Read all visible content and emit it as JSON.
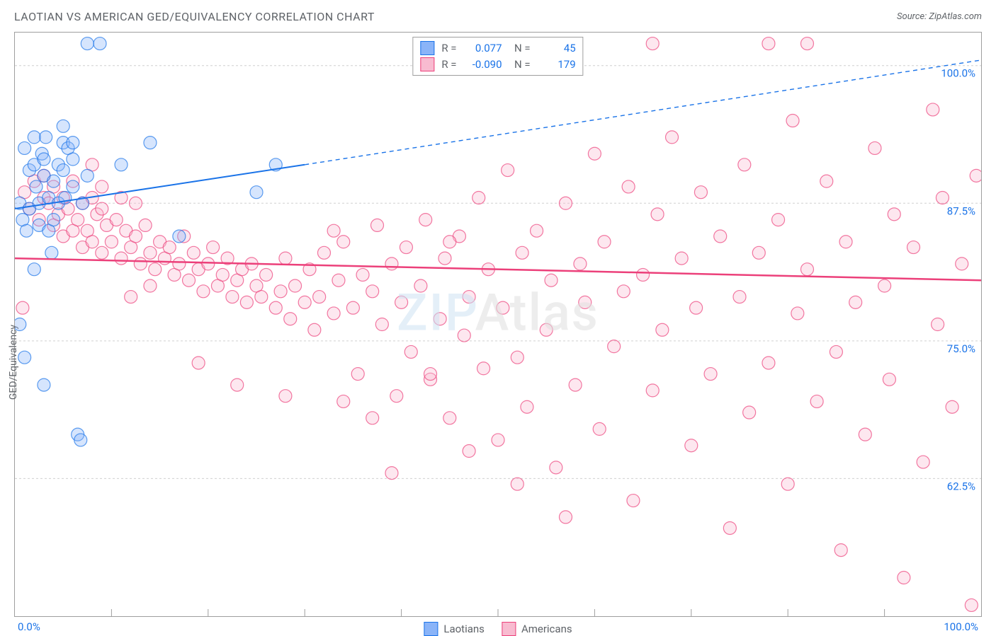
{
  "header": {
    "title": "LAOTIAN VS AMERICAN GED/EQUIVALENCY CORRELATION CHART",
    "source": "Source: ZipAtlas.com"
  },
  "watermark": {
    "z": "ZIP",
    "rest": "Atlas"
  },
  "chart": {
    "type": "scatter",
    "ylabel": "GED/Equivalency",
    "xlim": [
      0,
      100
    ],
    "ylim": [
      50,
      103
    ],
    "x_axis_left_label": "0.0%",
    "x_axis_right_label": "100.0%",
    "y_ticks": [
      {
        "v": 100.0,
        "label": "100.0%"
      },
      {
        "v": 87.5,
        "label": "87.5%"
      },
      {
        "v": 75.0,
        "label": "75.0%"
      },
      {
        "v": 62.5,
        "label": "62.5%"
      }
    ],
    "x_tick_marks": [
      10,
      20,
      30,
      40,
      50,
      60,
      70,
      80,
      90
    ],
    "grid_color": "#d0d0d0",
    "border_color": "#9e9e9e",
    "background_color": "#ffffff",
    "marker_radius": 9,
    "marker_opacity": 0.35,
    "series": [
      {
        "name": "Laotians",
        "color_fill": "#8ab4f8",
        "color_stroke": "#1a73e8",
        "R": "0.077",
        "N": "45",
        "trend": {
          "x1": 0,
          "y1": 87.0,
          "x2_solid": 30,
          "y2_solid": 91.0,
          "x2": 100,
          "y2": 100.5,
          "color": "#1a73e8",
          "width": 2
        },
        "points": [
          [
            0.5,
            87.5
          ],
          [
            0.8,
            86.0
          ],
          [
            1.0,
            92.5
          ],
          [
            1.2,
            85.0
          ],
          [
            1.5,
            90.5
          ],
          [
            1.5,
            87.0
          ],
          [
            2.0,
            93.5
          ],
          [
            2.0,
            91.0
          ],
          [
            2.2,
            89.0
          ],
          [
            2.5,
            87.5
          ],
          [
            2.5,
            85.5
          ],
          [
            2.8,
            92.0
          ],
          [
            3.0,
            90.0
          ],
          [
            3.0,
            91.5
          ],
          [
            3.2,
            93.5
          ],
          [
            3.5,
            88.0
          ],
          [
            3.5,
            85.0
          ],
          [
            3.8,
            83.0
          ],
          [
            4.0,
            86.0
          ],
          [
            4.0,
            89.5
          ],
          [
            4.5,
            91.0
          ],
          [
            4.5,
            87.5
          ],
          [
            5.0,
            93.0
          ],
          [
            5.0,
            90.5
          ],
          [
            5.2,
            88.0
          ],
          [
            5.5,
            92.5
          ],
          [
            6.0,
            91.5
          ],
          [
            6.0,
            89.0
          ],
          [
            6.5,
            66.5
          ],
          [
            6.8,
            66.0
          ],
          [
            7.0,
            87.5
          ],
          [
            7.5,
            90.0
          ],
          [
            7.5,
            102.0
          ],
          [
            8.8,
            102.0
          ],
          [
            0.5,
            76.5
          ],
          [
            1.0,
            73.5
          ],
          [
            2.0,
            81.5
          ],
          [
            3.0,
            71.0
          ],
          [
            5.0,
            94.5
          ],
          [
            6.0,
            93.0
          ],
          [
            11.0,
            91.0
          ],
          [
            14.0,
            93.0
          ],
          [
            17.0,
            84.5
          ],
          [
            25.0,
            88.5
          ],
          [
            27.0,
            91.0
          ]
        ]
      },
      {
        "name": "Americans",
        "color_fill": "#f8bbd0",
        "color_stroke": "#ec407a",
        "R": "-0.090",
        "N": "179",
        "trend": {
          "x1": 0,
          "y1": 82.5,
          "x2_solid": 100,
          "y2_solid": 80.5,
          "x2": 100,
          "y2": 80.5,
          "color": "#ec407a",
          "width": 2.5
        },
        "points": [
          [
            1.0,
            88.5
          ],
          [
            1.5,
            87.0
          ],
          [
            2.0,
            89.5
          ],
          [
            2.5,
            86.0
          ],
          [
            3.0,
            88.0
          ],
          [
            3.0,
            90.0
          ],
          [
            3.5,
            87.5
          ],
          [
            4.0,
            85.5
          ],
          [
            4.0,
            89.0
          ],
          [
            4.5,
            86.5
          ],
          [
            5.0,
            88.0
          ],
          [
            5.0,
            84.5
          ],
          [
            5.5,
            87.0
          ],
          [
            6.0,
            85.0
          ],
          [
            6.0,
            89.5
          ],
          [
            6.5,
            86.0
          ],
          [
            7.0,
            87.5
          ],
          [
            7.0,
            83.5
          ],
          [
            7.5,
            85.0
          ],
          [
            8.0,
            88.0
          ],
          [
            8.0,
            84.0
          ],
          [
            8.5,
            86.5
          ],
          [
            9.0,
            83.0
          ],
          [
            9.0,
            87.0
          ],
          [
            9.5,
            85.5
          ],
          [
            10.0,
            84.0
          ],
          [
            10.5,
            86.0
          ],
          [
            11.0,
            82.5
          ],
          [
            11.5,
            85.0
          ],
          [
            12.0,
            83.5
          ],
          [
            12.0,
            79.0
          ],
          [
            12.5,
            84.5
          ],
          [
            13.0,
            82.0
          ],
          [
            13.5,
            85.5
          ],
          [
            14.0,
            83.0
          ],
          [
            14.5,
            81.5
          ],
          [
            15.0,
            84.0
          ],
          [
            15.5,
            82.5
          ],
          [
            16.0,
            83.5
          ],
          [
            16.5,
            81.0
          ],
          [
            17.0,
            82.0
          ],
          [
            17.5,
            84.5
          ],
          [
            18.0,
            80.5
          ],
          [
            18.5,
            83.0
          ],
          [
            19.0,
            81.5
          ],
          [
            19.5,
            79.5
          ],
          [
            20.0,
            82.0
          ],
          [
            20.5,
            83.5
          ],
          [
            21.0,
            80.0
          ],
          [
            21.5,
            81.0
          ],
          [
            22.0,
            82.5
          ],
          [
            22.5,
            79.0
          ],
          [
            23.0,
            80.5
          ],
          [
            23.5,
            81.5
          ],
          [
            24.0,
            78.5
          ],
          [
            24.5,
            82.0
          ],
          [
            25.0,
            80.0
          ],
          [
            25.5,
            79.0
          ],
          [
            26.0,
            81.0
          ],
          [
            27.0,
            78.0
          ],
          [
            27.5,
            79.5
          ],
          [
            28.0,
            82.5
          ],
          [
            28.5,
            77.0
          ],
          [
            29.0,
            80.0
          ],
          [
            30.0,
            78.5
          ],
          [
            30.5,
            81.5
          ],
          [
            31.0,
            76.0
          ],
          [
            31.5,
            79.0
          ],
          [
            32.0,
            83.0
          ],
          [
            33.0,
            77.5
          ],
          [
            33.5,
            80.5
          ],
          [
            34.0,
            69.5
          ],
          [
            34.0,
            84.0
          ],
          [
            35.0,
            78.0
          ],
          [
            35.5,
            72.0
          ],
          [
            36.0,
            81.0
          ],
          [
            37.0,
            79.5
          ],
          [
            37.5,
            85.5
          ],
          [
            38.0,
            76.5
          ],
          [
            39.0,
            82.0
          ],
          [
            39.5,
            70.0
          ],
          [
            40.0,
            78.5
          ],
          [
            40.5,
            83.5
          ],
          [
            41.0,
            74.0
          ],
          [
            42.0,
            80.0
          ],
          [
            42.5,
            86.0
          ],
          [
            43.0,
            71.5
          ],
          [
            44.0,
            77.0
          ],
          [
            44.5,
            82.5
          ],
          [
            45.0,
            68.0
          ],
          [
            46.0,
            84.5
          ],
          [
            46.5,
            75.5
          ],
          [
            47.0,
            79.0
          ],
          [
            48.0,
            88.0
          ],
          [
            48.5,
            72.5
          ],
          [
            49.0,
            81.5
          ],
          [
            50.0,
            66.0
          ],
          [
            50.5,
            78.0
          ],
          [
            51.0,
            90.5
          ],
          [
            52.0,
            73.5
          ],
          [
            52.5,
            83.0
          ],
          [
            53.0,
            69.0
          ],
          [
            54.0,
            85.0
          ],
          [
            55.0,
            76.0
          ],
          [
            55.5,
            80.5
          ],
          [
            56.0,
            63.5
          ],
          [
            57.0,
            87.5
          ],
          [
            58.0,
            71.0
          ],
          [
            58.5,
            82.0
          ],
          [
            59.0,
            78.5
          ],
          [
            60.0,
            92.0
          ],
          [
            60.5,
            67.0
          ],
          [
            61.0,
            84.0
          ],
          [
            62.0,
            74.5
          ],
          [
            63.0,
            79.5
          ],
          [
            63.5,
            89.0
          ],
          [
            64.0,
            60.5
          ],
          [
            65.0,
            81.0
          ],
          [
            66.0,
            70.5
          ],
          [
            66.5,
            86.5
          ],
          [
            67.0,
            76.0
          ],
          [
            68.0,
            93.5
          ],
          [
            69.0,
            82.5
          ],
          [
            70.0,
            65.5
          ],
          [
            70.5,
            78.0
          ],
          [
            71.0,
            88.5
          ],
          [
            72.0,
            72.0
          ],
          [
            73.0,
            84.5
          ],
          [
            74.0,
            58.0
          ],
          [
            75.0,
            79.0
          ],
          [
            75.5,
            91.0
          ],
          [
            76.0,
            68.5
          ],
          [
            77.0,
            83.0
          ],
          [
            78.0,
            73.0
          ],
          [
            79.0,
            86.0
          ],
          [
            80.0,
            62.0
          ],
          [
            80.5,
            95.0
          ],
          [
            81.0,
            77.5
          ],
          [
            82.0,
            81.5
          ],
          [
            83.0,
            69.5
          ],
          [
            84.0,
            89.5
          ],
          [
            85.0,
            74.0
          ],
          [
            85.5,
            56.0
          ],
          [
            86.0,
            84.0
          ],
          [
            87.0,
            78.5
          ],
          [
            88.0,
            66.5
          ],
          [
            89.0,
            92.5
          ],
          [
            90.0,
            80.0
          ],
          [
            90.5,
            71.5
          ],
          [
            91.0,
            86.5
          ],
          [
            92.0,
            53.5
          ],
          [
            93.0,
            83.5
          ],
          [
            94.0,
            64.0
          ],
          [
            95.0,
            96.0
          ],
          [
            95.5,
            76.5
          ],
          [
            96.0,
            88.0
          ],
          [
            97.0,
            69.0
          ],
          [
            98.0,
            82.0
          ],
          [
            99.0,
            51.0
          ],
          [
            99.5,
            90.0
          ],
          [
            78.0,
            102.0
          ],
          [
            82.0,
            102.0
          ],
          [
            66.0,
            102.0
          ],
          [
            45.0,
            84.0
          ],
          [
            47.0,
            65.0
          ],
          [
            52.0,
            62.0
          ],
          [
            57.0,
            59.0
          ],
          [
            37.0,
            68.0
          ],
          [
            39.0,
            63.0
          ],
          [
            43.0,
            72.0
          ],
          [
            33.0,
            85.0
          ],
          [
            28.0,
            70.0
          ],
          [
            23.0,
            71.0
          ],
          [
            19.0,
            73.0
          ],
          [
            14.0,
            80.0
          ],
          [
            12.5,
            87.5
          ],
          [
            11.0,
            88.0
          ],
          [
            9.0,
            89.0
          ],
          [
            8.0,
            91.0
          ],
          [
            0.8,
            78.0
          ]
        ]
      }
    ]
  },
  "legend_bottom": [
    {
      "label": "Laotians",
      "fill": "#8ab4f8",
      "stroke": "#1a73e8"
    },
    {
      "label": "Americans",
      "fill": "#f8bbd0",
      "stroke": "#ec407a"
    }
  ]
}
